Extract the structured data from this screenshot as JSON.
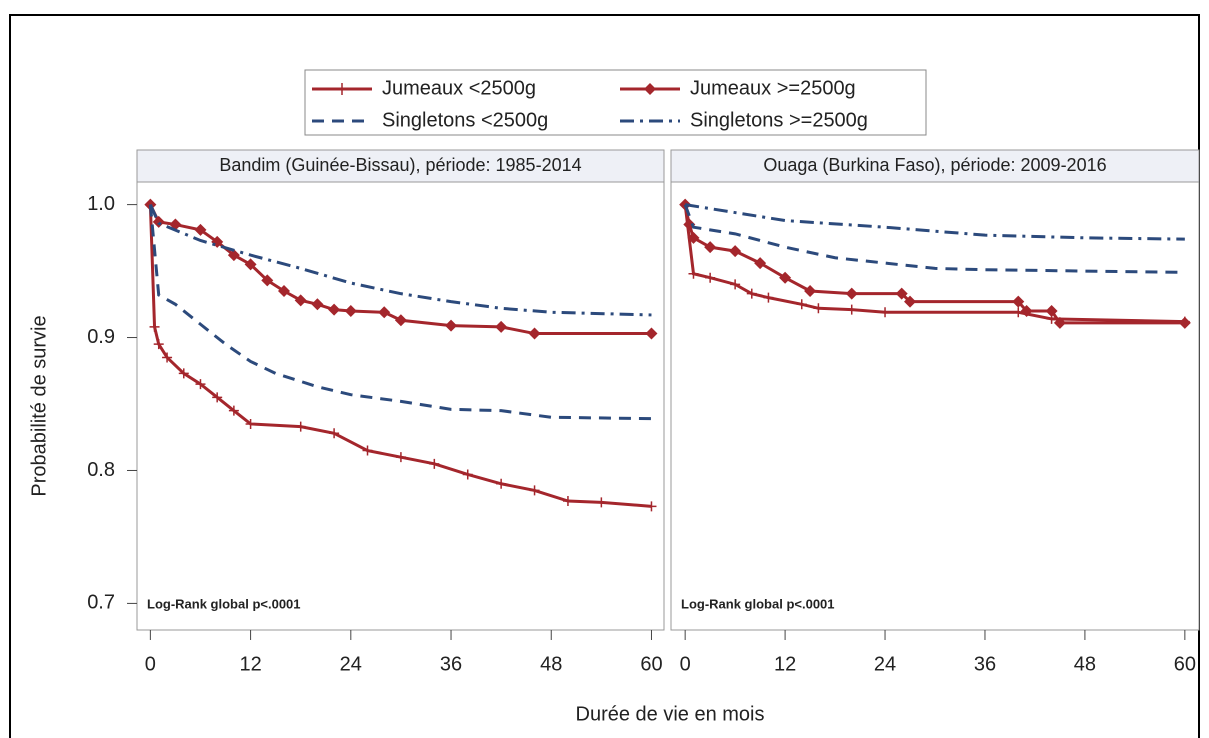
{
  "chart_data": [
    {
      "type": "line",
      "title": "Bandim (Guinée-Bissau), période:  1985-2014",
      "ylabel": "Probabilité de survie",
      "xlabel": "Durée de vie en mois",
      "annotation": "Log-Rank global p<.0001",
      "xlim": [
        -1.6,
        61.5
      ],
      "xticks": [
        0,
        12,
        24,
        36,
        48,
        60
      ],
      "ylim": [
        0.68,
        1.017
      ],
      "yticks": [
        {
          "value": 1,
          "label": "1.0"
        },
        0.9,
        0.8,
        0.7
      ],
      "series": [
        {
          "name": "Jumeaux <2500g",
          "color": "#a4262c",
          "dash": "solid",
          "marker": "plus",
          "x": [
            0,
            0.5,
            1,
            2,
            4,
            6,
            8,
            10,
            12,
            18,
            22,
            26,
            30,
            34,
            38,
            42,
            46,
            50,
            54,
            60
          ],
          "values": [
            1.0,
            0.908,
            0.895,
            0.885,
            0.873,
            0.865,
            0.855,
            0.845,
            0.835,
            0.833,
            0.828,
            0.815,
            0.81,
            0.805,
            0.797,
            0.79,
            0.785,
            0.777,
            0.776,
            0.773
          ]
        },
        {
          "name": "Jumeaux >=2500g",
          "color": "#a4262c",
          "dash": "solid",
          "marker": "diamond",
          "x": [
            0,
            1,
            3,
            6,
            8,
            10,
            12,
            14,
            16,
            18,
            20,
            22,
            24,
            28,
            30,
            36,
            42,
            46,
            60
          ],
          "values": [
            1.0,
            0.987,
            0.985,
            0.981,
            0.972,
            0.962,
            0.955,
            0.943,
            0.935,
            0.928,
            0.925,
            0.921,
            0.92,
            0.919,
            0.913,
            0.909,
            0.908,
            0.903,
            0.903
          ]
        },
        {
          "name": "Singletons <2500g",
          "color": "#2c4a7c",
          "dash": "dashed",
          "marker": "none",
          "x": [
            0,
            1,
            3,
            6,
            9,
            12,
            15,
            20,
            24,
            30,
            36,
            42,
            48,
            60
          ],
          "values": [
            1.0,
            0.932,
            0.925,
            0.91,
            0.895,
            0.882,
            0.873,
            0.863,
            0.857,
            0.852,
            0.846,
            0.845,
            0.84,
            0.839
          ]
        },
        {
          "name": "Singletons >=2500g",
          "color": "#2c4a7c",
          "dash": "dashdot",
          "marker": "none",
          "x": [
            0,
            1,
            6,
            12,
            18,
            24,
            30,
            36,
            42,
            48,
            60
          ],
          "values": [
            1.0,
            0.986,
            0.973,
            0.962,
            0.952,
            0.941,
            0.933,
            0.927,
            0.922,
            0.919,
            0.917
          ]
        }
      ]
    },
    {
      "type": "line",
      "title": "Ouaga (Burkina Faso), période:  2009-2016",
      "annotation": "Log-Rank global p<.0001",
      "xlim": [
        -1.7,
        61.7
      ],
      "xticks": [
        0,
        12,
        24,
        36,
        48,
        60
      ],
      "ylim": [
        0.68,
        1.017
      ],
      "series": [
        {
          "color": "#a4262c",
          "dash": "solid",
          "marker": "plus",
          "x": [
            0,
            1,
            3,
            6,
            8,
            10,
            14,
            16,
            20,
            24,
            40,
            44,
            60
          ],
          "values": [
            1.0,
            0.948,
            0.945,
            0.94,
            0.933,
            0.93,
            0.925,
            0.922,
            0.921,
            0.919,
            0.919,
            0.914,
            0.912
          ]
        },
        {
          "color": "#a4262c",
          "dash": "solid",
          "marker": "diamond",
          "x": [
            0,
            0.5,
            1,
            3,
            6,
            9,
            12,
            15,
            20,
            26,
            27,
            40,
            41,
            44,
            45,
            60
          ],
          "values": [
            1.0,
            0.985,
            0.975,
            0.968,
            0.965,
            0.956,
            0.945,
            0.935,
            0.933,
            0.933,
            0.927,
            0.927,
            0.92,
            0.92,
            0.911,
            0.911
          ]
        },
        {
          "color": "#2c4a7c",
          "dash": "dashed",
          "marker": "none",
          "x": [
            0,
            1,
            6,
            12,
            18,
            24,
            30,
            36,
            48,
            60
          ],
          "values": [
            1.0,
            0.983,
            0.978,
            0.968,
            0.96,
            0.956,
            0.952,
            0.951,
            0.95,
            0.949
          ]
        },
        {
          "color": "#2c4a7c",
          "dash": "dashdot",
          "marker": "none",
          "x": [
            0,
            6,
            12,
            24,
            36,
            48,
            60
          ],
          "values": [
            1.0,
            0.994,
            0.988,
            0.983,
            0.977,
            0.975,
            0.974
          ]
        }
      ]
    }
  ]
}
